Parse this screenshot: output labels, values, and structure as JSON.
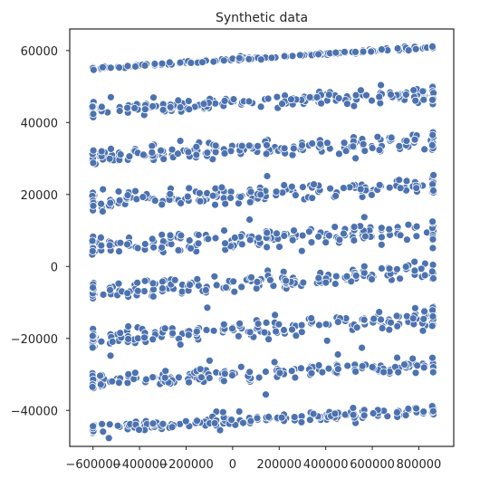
{
  "chart_data": {
    "type": "scatter",
    "title": "Synthetic data",
    "xlabel": "",
    "ylabel": "",
    "xlim": [
      -700000,
      950000
    ],
    "ylim": [
      -50000,
      66000
    ],
    "xticks": [
      -600000,
      -400000,
      -200000,
      0,
      200000,
      400000,
      600000,
      800000
    ],
    "xtick_labels": [
      "−600000",
      "−400000",
      "−200000",
      "0",
      "200000",
      "400000",
      "600000",
      "800000"
    ],
    "yticks": [
      -40000,
      -20000,
      0,
      20000,
      40000,
      60000
    ],
    "ytick_labels": [
      "−40000",
      "−20000",
      "0",
      "20000",
      "40000",
      "60000"
    ],
    "grid": false,
    "marker_color": "#4c72b0",
    "x_range_points": [
      -600000,
      860000
    ],
    "bands": [
      {
        "y_start": 55000,
        "y_end": 61000,
        "spread": 250
      },
      {
        "y_start": 43500,
        "y_end": 48000,
        "spread": 1400
      },
      {
        "y_start": 30500,
        "y_end": 35000,
        "spread": 1600
      },
      {
        "y_start": 18000,
        "y_end": 23000,
        "spread": 1600
      },
      {
        "y_start": 5500,
        "y_end": 10000,
        "spread": 1800
      },
      {
        "y_start": -7000,
        "y_end": -1000,
        "spread": 1800
      },
      {
        "y_start": -20000,
        "y_end": -14000,
        "spread": 1800
      },
      {
        "y_start": -32000,
        "y_end": -27000,
        "spread": 1500
      },
      {
        "y_start": -45000,
        "y_end": -40000,
        "spread": 900
      }
    ]
  }
}
